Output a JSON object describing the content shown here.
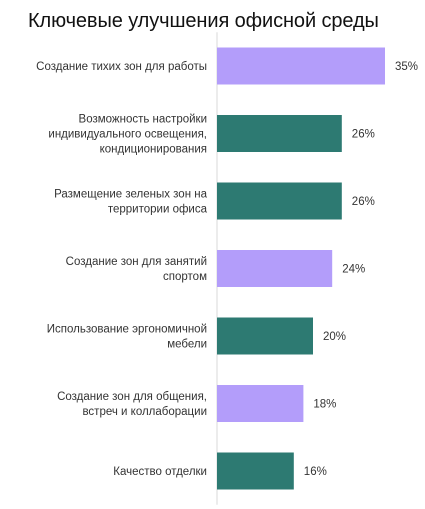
{
  "title": "Ключевые улучшения офисной среды",
  "chart_data": {
    "type": "bar",
    "orientation": "horizontal",
    "title": "Ключевые улучшения офисной среды",
    "categories": [
      [
        "Создание тихих зон для работы"
      ],
      [
        "Возможность настройки",
        "индивидуального освещения,",
        "кондиционирования"
      ],
      [
        "Размещение зеленых зон на",
        "территории офиса"
      ],
      [
        "Создание зон для занятий",
        "спортом"
      ],
      [
        "Использование эргономичной",
        "мебели"
      ],
      [
        "Создание зон для общения,",
        "встреч и коллаборации"
      ],
      [
        "Качество отделки"
      ]
    ],
    "values": [
      35,
      26,
      26,
      24,
      20,
      18,
      16
    ],
    "value_labels": [
      "35%",
      "26%",
      "26%",
      "24%",
      "20%",
      "18%",
      "16%"
    ],
    "bar_colors": [
      "#b39dfa",
      "#2d7a72",
      "#2d7a72",
      "#b39dfa",
      "#2d7a72",
      "#b39dfa",
      "#2d7a72"
    ],
    "xlim": [
      0,
      35
    ],
    "grid": false,
    "legend": "none"
  }
}
